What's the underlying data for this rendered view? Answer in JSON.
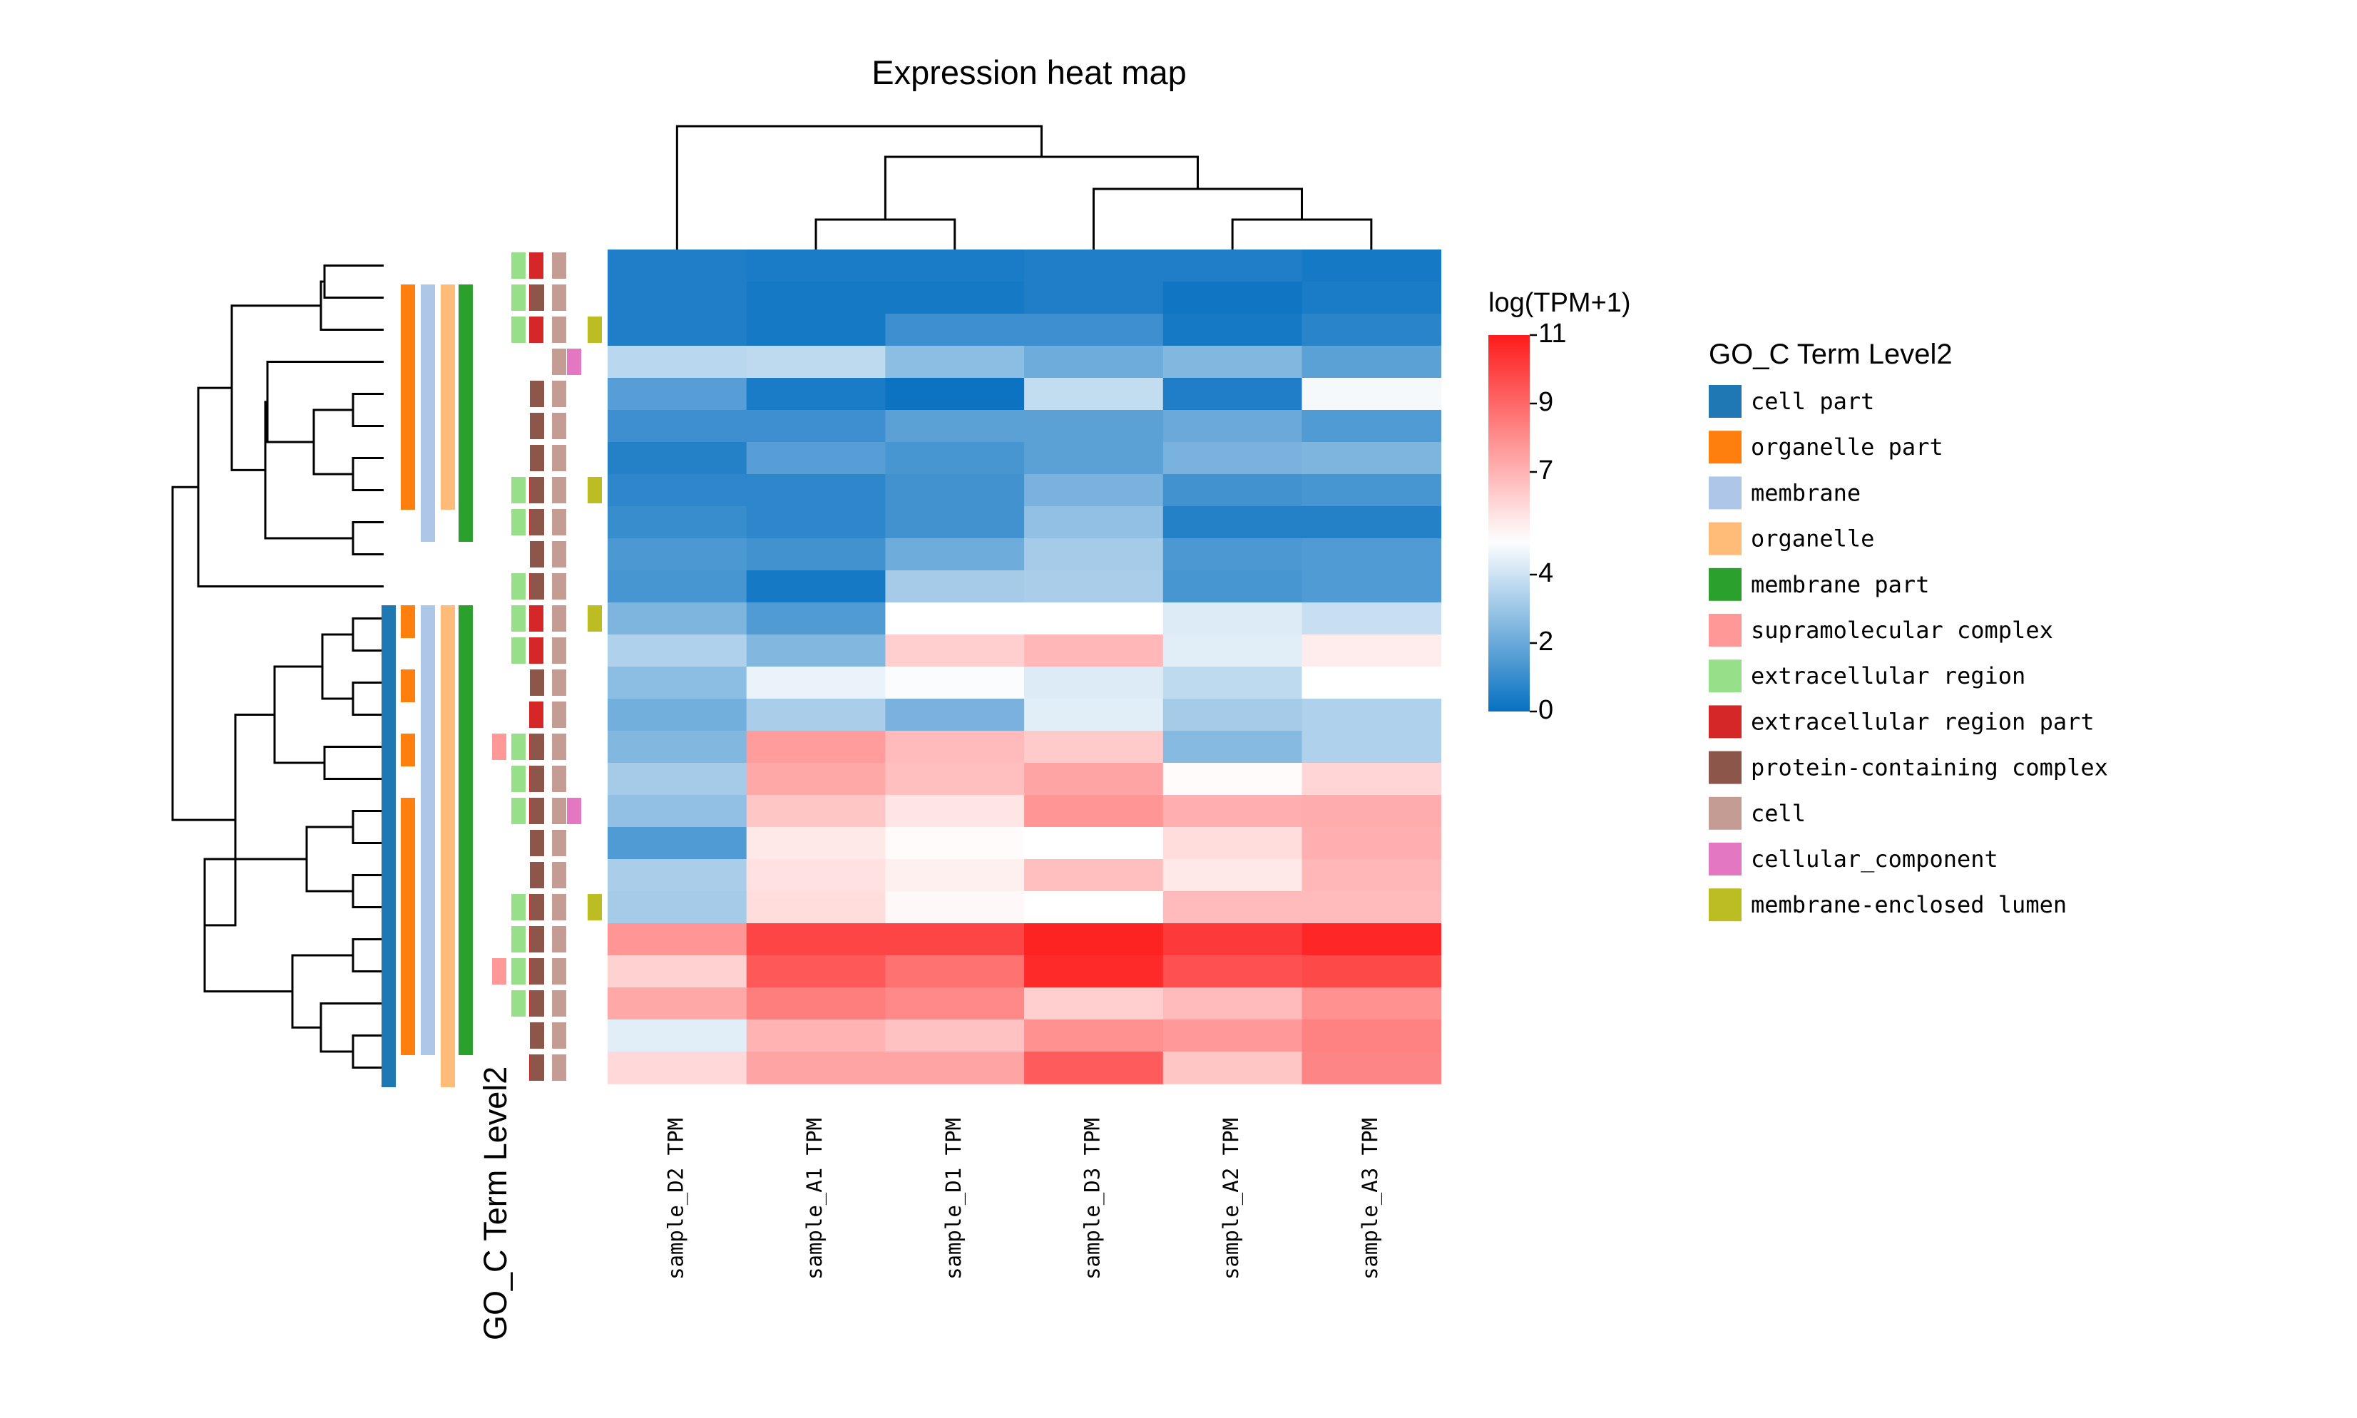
{
  "chart_data": {
    "type": "heatmap",
    "title": "Expression heat map",
    "columns": [
      "sample_D2 TPM",
      "sample_A1 TPM",
      "sample_D1 TPM",
      "sample_D3 TPM",
      "sample_A2 TPM",
      "sample_A3 TPM"
    ],
    "values": [
      [
        0.5,
        0.4,
        0.4,
        0.5,
        0.5,
        0.3
      ],
      [
        0.5,
        0.3,
        0.3,
        0.5,
        0.2,
        0.4
      ],
      [
        0.5,
        0.3,
        1.1,
        1.1,
        0.3,
        0.7
      ],
      [
        3.6,
        3.7,
        2.7,
        2.1,
        2.5,
        1.7
      ],
      [
        1.6,
        0.4,
        0.1,
        3.8,
        0.5,
        4.8
      ],
      [
        1.1,
        1.1,
        1.7,
        1.7,
        2.0,
        1.5
      ],
      [
        0.6,
        1.6,
        1.3,
        1.7,
        2.3,
        2.4
      ],
      [
        0.8,
        0.8,
        1.2,
        2.3,
        1.2,
        1.3
      ],
      [
        1.0,
        0.8,
        1.2,
        2.8,
        0.6,
        0.6
      ],
      [
        1.4,
        1.2,
        2.1,
        3.2,
        1.4,
        1.5
      ],
      [
        1.3,
        0.3,
        3.2,
        3.3,
        1.3,
        1.5
      ],
      [
        2.4,
        1.5,
        5.0,
        5.0,
        4.3,
        3.9
      ],
      [
        3.4,
        2.5,
        6.3,
        6.9,
        4.4,
        5.5
      ],
      [
        2.7,
        4.6,
        4.9,
        4.3,
        3.7,
        5.0
      ],
      [
        2.2,
        3.3,
        2.3,
        4.4,
        3.2,
        3.4
      ],
      [
        2.5,
        7.6,
        6.8,
        6.4,
        2.6,
        3.4
      ],
      [
        3.2,
        7.3,
        6.7,
        7.4,
        5.1,
        6.1
      ],
      [
        2.8,
        6.5,
        5.7,
        7.8,
        7.1,
        7.2
      ],
      [
        1.5,
        5.6,
        5.1,
        5.0,
        5.9,
        7.1
      ],
      [
        3.3,
        5.8,
        5.4,
        6.7,
        5.6,
        6.9
      ],
      [
        3.2,
        5.9,
        5.2,
        5.0,
        6.8,
        6.8
      ],
      [
        7.8,
        9.9,
        9.9,
        10.8,
        10.2,
        10.7
      ],
      [
        6.2,
        9.4,
        8.7,
        10.6,
        9.6,
        9.8
      ],
      [
        7.3,
        8.4,
        8.1,
        6.3,
        6.8,
        7.9
      ],
      [
        4.4,
        7.0,
        6.6,
        7.9,
        7.7,
        8.3
      ],
      [
        6.0,
        7.4,
        7.4,
        9.3,
        6.5,
        8.2
      ]
    ],
    "colorbar": {
      "label": "log(TPM+1)",
      "ticks": [
        0,
        2,
        4,
        7,
        9,
        11
      ],
      "range": [
        0,
        11
      ],
      "colors": [
        "#0670c1",
        "#ffffff",
        "#fe1b1b"
      ]
    },
    "annotation_label": "GO_C Term Level2",
    "legend": {
      "title": "GO_C Term Level2",
      "items": [
        {
          "name": "cell part",
          "color": "#1f77b4"
        },
        {
          "name": "organelle part",
          "color": "#ff7f0e"
        },
        {
          "name": "membrane",
          "color": "#aec7e8"
        },
        {
          "name": "organelle",
          "color": "#ffbb78"
        },
        {
          "name": "membrane part",
          "color": "#2ca02c"
        },
        {
          "name": "supramolecular complex",
          "color": "#ff9896"
        },
        {
          "name": "extracellular region",
          "color": "#98df8a"
        },
        {
          "name": "extracellular region part",
          "color": "#d62728"
        },
        {
          "name": "protein-containing complex",
          "color": "#8c564b"
        },
        {
          "name": "cell",
          "color": "#c49c94"
        },
        {
          "name": "cellular_component",
          "color": "#e377c2"
        },
        {
          "name": "membrane-enclosed lumen",
          "color": "#bcbd22"
        }
      ]
    },
    "row_annotations": [
      [
        0,
        0,
        0,
        0,
        0,
        0,
        0,
        0,
        0,
        0,
        0,
        1,
        1,
        1,
        1,
        1,
        1,
        1,
        1,
        1,
        1,
        1,
        1,
        1,
        1,
        1
      ],
      [
        0,
        1,
        1,
        1,
        1,
        1,
        1,
        1,
        0,
        0,
        0,
        1,
        0,
        1,
        0,
        1,
        0,
        1,
        1,
        1,
        1,
        1,
        1,
        1,
        1,
        0
      ],
      [
        0,
        1,
        1,
        1,
        1,
        1,
        1,
        1,
        1,
        0,
        0,
        1,
        1,
        1,
        1,
        1,
        1,
        1,
        1,
        1,
        1,
        1,
        1,
        1,
        1,
        0
      ],
      [
        0,
        1,
        1,
        1,
        1,
        1,
        1,
        1,
        0,
        0,
        0,
        1,
        1,
        1,
        1,
        1,
        1,
        1,
        1,
        1,
        1,
        1,
        1,
        1,
        1,
        1
      ],
      [
        0,
        1,
        1,
        1,
        1,
        1,
        1,
        1,
        1,
        0,
        0,
        1,
        1,
        1,
        1,
        1,
        1,
        1,
        1,
        1,
        1,
        1,
        1,
        1,
        1,
        0
      ],
      [
        0,
        0,
        0,
        0,
        0,
        0,
        0,
        0,
        0,
        0,
        0,
        0,
        0,
        0,
        0,
        1,
        0,
        0,
        0,
        0,
        0,
        0,
        1,
        0,
        0,
        0
      ],
      [
        1,
        1,
        1,
        0,
        0,
        0,
        0,
        1,
        1,
        0,
        1,
        1,
        1,
        0,
        0,
        1,
        1,
        1,
        0,
        0,
        1,
        1,
        1,
        1,
        0,
        0
      ],
      [
        1,
        1,
        1,
        0,
        0,
        0,
        0,
        1,
        1,
        0,
        1,
        1,
        1,
        0,
        1,
        1,
        1,
        1,
        0,
        0,
        1,
        1,
        1,
        1,
        0,
        1
      ],
      [
        0,
        1,
        0,
        0,
        1,
        1,
        1,
        1,
        1,
        1,
        1,
        0,
        0,
        1,
        0,
        1,
        1,
        1,
        1,
        1,
        1,
        1,
        1,
        1,
        1,
        1
      ],
      [
        1,
        1,
        1,
        1,
        1,
        1,
        1,
        1,
        1,
        1,
        1,
        1,
        1,
        1,
        1,
        1,
        1,
        1,
        1,
        1,
        1,
        1,
        1,
        1,
        1,
        1
      ],
      [
        0,
        0,
        0,
        1,
        0,
        0,
        0,
        0,
        0,
        0,
        0,
        0,
        0,
        0,
        0,
        0,
        0,
        1,
        0,
        0,
        0,
        0,
        0,
        0,
        0,
        0
      ],
      [
        0,
        0,
        1,
        0,
        0,
        0,
        0,
        1,
        0,
        0,
        0,
        1,
        0,
        0,
        0,
        0,
        0,
        0,
        0,
        0,
        1,
        0,
        0,
        0,
        0,
        0
      ]
    ],
    "annotation_order": [
      0,
      1,
      2,
      3,
      4,
      5,
      6,
      7,
      8,
      9,
      10,
      11
    ]
  }
}
